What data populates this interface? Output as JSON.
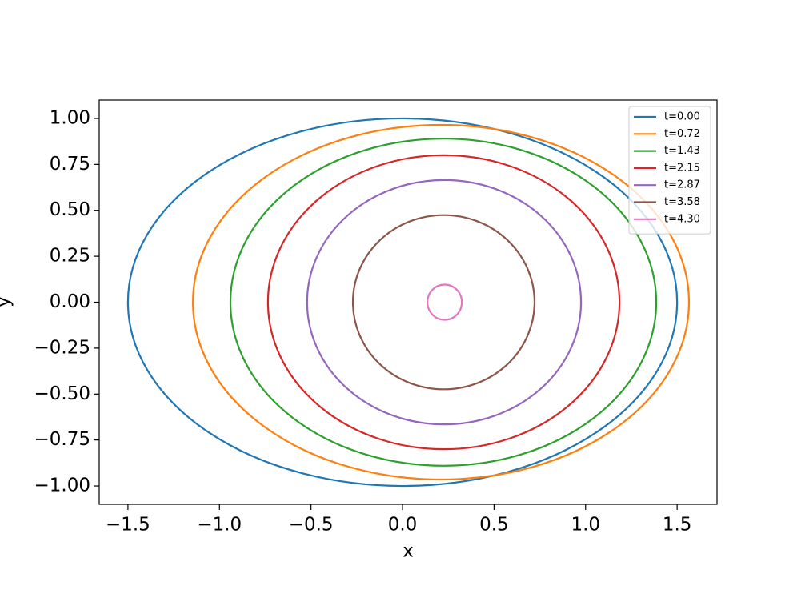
{
  "chart_data": {
    "type": "ellipse",
    "xlabel": "x",
    "ylabel": "y",
    "xlim": [
      -1.657,
      1.718
    ],
    "ylim": [
      -1.1,
      1.1
    ],
    "xticks": [
      {
        "value": -1.5,
        "label": "−1.5"
      },
      {
        "value": -1.0,
        "label": "−1.0"
      },
      {
        "value": -0.5,
        "label": "−0.5"
      },
      {
        "value": 0.0,
        "label": "0.0"
      },
      {
        "value": 0.5,
        "label": "0.5"
      },
      {
        "value": 1.0,
        "label": "1.0"
      },
      {
        "value": 1.5,
        "label": "1.5"
      }
    ],
    "yticks": [
      {
        "value": -1.0,
        "label": "−1.00"
      },
      {
        "value": -0.75,
        "label": "−0.75"
      },
      {
        "value": -0.5,
        "label": "−0.50"
      },
      {
        "value": -0.25,
        "label": "−0.25"
      },
      {
        "value": 0.0,
        "label": "0.00"
      },
      {
        "value": 0.25,
        "label": "0.25"
      },
      {
        "value": 0.5,
        "label": "0.50"
      },
      {
        "value": 0.75,
        "label": "0.75"
      },
      {
        "value": 1.0,
        "label": "1.00"
      }
    ],
    "legend": "upper right",
    "series": [
      {
        "name": "t=0.00",
        "color": "#1f77b4",
        "center": [
          0.0,
          0.0
        ],
        "radii": [
          1.5,
          1.0
        ]
      },
      {
        "name": "t=0.72",
        "color": "#ff7f0e",
        "center": [
          0.21,
          0.0
        ],
        "radii": [
          1.355,
          0.965
        ]
      },
      {
        "name": "t=1.43",
        "color": "#2ca02c",
        "center": [
          0.223,
          0.0
        ],
        "radii": [
          1.163,
          0.89
        ]
      },
      {
        "name": "t=2.15",
        "color": "#d62728",
        "center": [
          0.225,
          0.0
        ],
        "radii": [
          0.96,
          0.8
        ]
      },
      {
        "name": "t=2.87",
        "color": "#9467bd",
        "center": [
          0.227,
          0.0
        ],
        "radii": [
          0.748,
          0.665
        ]
      },
      {
        "name": "t=3.58",
        "color": "#8c564b",
        "center": [
          0.225,
          0.0
        ],
        "radii": [
          0.496,
          0.474
        ]
      },
      {
        "name": "t=4.30",
        "color": "#e377c2",
        "center": [
          0.23,
          0.0
        ],
        "radii": [
          0.094,
          0.096
        ]
      }
    ]
  }
}
